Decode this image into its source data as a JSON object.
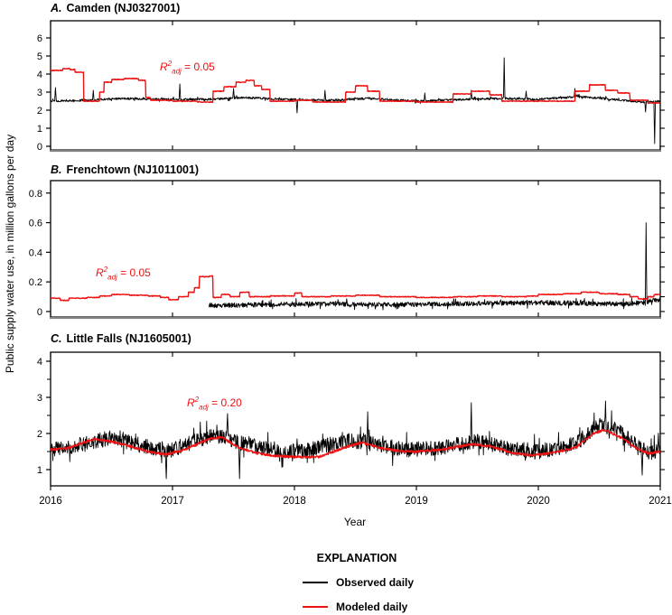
{
  "figure": {
    "y_axis_label": "Public supply water use, in million gallons per day",
    "x_axis_label": "Year",
    "x_ticks": [
      "2016",
      "2017",
      "2018",
      "2019",
      "2020",
      "2021"
    ],
    "colors": {
      "observed": "#000000",
      "modeled": "#ee1111",
      "annotation": "#ee1111",
      "gray_baseline": "#828282"
    },
    "legend": {
      "title": "EXPLANATION",
      "items": [
        {
          "label": "Observed daily",
          "color": "#000000"
        },
        {
          "label": "Modeled daily",
          "color": "#ee1111"
        }
      ]
    }
  },
  "chart_data": [
    {
      "type": "line",
      "panel_letter": "A.",
      "panel_name": "Camden (NJ0327001)",
      "r2": {
        "base": "R",
        "sup": "2",
        "sub": "adj",
        "rest": " = 0.05"
      },
      "xlabel": "Year",
      "xlim": [
        2016,
        2021
      ],
      "ylim": [
        -0.2,
        6.95
      ],
      "yticks": [
        "0",
        "1",
        "2",
        "3",
        "4",
        "5",
        "6"
      ],
      "yticks_right": [
        0,
        1,
        2,
        3,
        4,
        5,
        6
      ],
      "grid": false,
      "series": [
        {
          "name": "Observed daily",
          "style": "noisy",
          "interp": "linear",
          "noise": 0.06,
          "start": 2016,
          "base": [
            [
              2016.0,
              2.5
            ],
            [
              2016.3,
              2.55
            ],
            [
              2016.6,
              2.65
            ],
            [
              2016.9,
              2.6
            ],
            [
              2017.3,
              2.6
            ],
            [
              2017.6,
              2.7
            ],
            [
              2017.9,
              2.6
            ],
            [
              2018.3,
              2.55
            ],
            [
              2018.6,
              2.65
            ],
            [
              2019.0,
              2.5
            ],
            [
              2019.4,
              2.6
            ],
            [
              2019.7,
              2.65
            ],
            [
              2020.0,
              2.6
            ],
            [
              2020.35,
              2.75
            ],
            [
              2020.6,
              2.6
            ],
            [
              2020.85,
              2.45
            ],
            [
              2021.0,
              2.5
            ]
          ],
          "spikes": [
            [
              2016.04,
              3.25
            ],
            [
              2016.35,
              3.1
            ],
            [
              2017.06,
              3.45
            ],
            [
              2017.5,
              3.2
            ],
            [
              2018.02,
              1.85
            ],
            [
              2018.25,
              3.1
            ],
            [
              2019.07,
              2.95
            ],
            [
              2019.45,
              3.1
            ],
            [
              2019.72,
              4.9
            ],
            [
              2019.9,
              3.05
            ],
            [
              2020.3,
              3.2
            ],
            [
              2020.88,
              1.9
            ],
            [
              2020.955,
              0.15
            ]
          ]
        },
        {
          "name": "Modeled daily",
          "style": "smooth",
          "interp": "step",
          "noise": 0.02,
          "start": 2016,
          "base": [
            [
              2016.0,
              4.2
            ],
            [
              2016.1,
              4.3
            ],
            [
              2016.16,
              4.25
            ],
            [
              2016.2,
              4.1
            ],
            [
              2016.27,
              2.5
            ],
            [
              2016.4,
              3.0
            ],
            [
              2016.44,
              3.55
            ],
            [
              2016.5,
              3.7
            ],
            [
              2016.6,
              3.75
            ],
            [
              2016.72,
              3.65
            ],
            [
              2016.78,
              2.7
            ],
            [
              2016.82,
              2.55
            ],
            [
              2017.0,
              2.5
            ],
            [
              2017.2,
              2.45
            ],
            [
              2017.33,
              3.05
            ],
            [
              2017.42,
              3.3
            ],
            [
              2017.52,
              3.55
            ],
            [
              2017.6,
              3.65
            ],
            [
              2017.67,
              3.35
            ],
            [
              2017.73,
              3.15
            ],
            [
              2017.8,
              2.5
            ],
            [
              2018.0,
              2.55
            ],
            [
              2018.15,
              2.45
            ],
            [
              2018.42,
              3.0
            ],
            [
              2018.5,
              3.35
            ],
            [
              2018.6,
              3.05
            ],
            [
              2018.7,
              2.5
            ],
            [
              2019.0,
              2.45
            ],
            [
              2019.3,
              2.9
            ],
            [
              2019.45,
              3.05
            ],
            [
              2019.6,
              2.85
            ],
            [
              2019.7,
              2.5
            ],
            [
              2020.0,
              2.5
            ],
            [
              2020.3,
              3.05
            ],
            [
              2020.42,
              3.4
            ],
            [
              2020.55,
              3.1
            ],
            [
              2020.65,
              2.95
            ],
            [
              2020.75,
              2.55
            ],
            [
              2020.9,
              2.4
            ],
            [
              2021.0,
              2.6
            ]
          ],
          "spikes": []
        }
      ]
    },
    {
      "type": "line",
      "panel_letter": "B.",
      "panel_name": "Frenchtown (NJ1011001)",
      "r2": {
        "base": "R",
        "sup": "2",
        "sub": "adj",
        "rest": " = 0.05"
      },
      "xlabel": "Year",
      "xlim": [
        2016,
        2021
      ],
      "ylim": [
        -0.037,
        0.884
      ],
      "yticks": [
        "0",
        "0.2",
        "0.4",
        "0.6",
        "0.8"
      ],
      "yticks_right": [
        0,
        0.1,
        0.2,
        0.3,
        0.4,
        0.5,
        0.6,
        0.7,
        0.8
      ],
      "grid": false,
      "series": [
        {
          "name": "Observed daily",
          "style": "noisy",
          "interp": "linear",
          "noise": 0.016,
          "start": 2017.3,
          "base": [
            [
              2017.3,
              0.04
            ],
            [
              2017.7,
              0.045
            ],
            [
              2018.0,
              0.05
            ],
            [
              2018.4,
              0.05
            ],
            [
              2018.8,
              0.045
            ],
            [
              2019.2,
              0.05
            ],
            [
              2019.6,
              0.055
            ],
            [
              2020.0,
              0.06
            ],
            [
              2020.4,
              0.055
            ],
            [
              2020.7,
              0.05
            ],
            [
              2020.85,
              0.06
            ],
            [
              2021.0,
              0.08
            ]
          ],
          "spikes": [
            [
              2020.885,
              0.6
            ],
            [
              2020.95,
              0.09
            ]
          ]
        },
        {
          "name": "Modeled daily",
          "style": "smooth",
          "interp": "step",
          "noise": 0.0025,
          "start": 2016,
          "base": [
            [
              2016.0,
              0.09
            ],
            [
              2016.08,
              0.075
            ],
            [
              2016.15,
              0.09
            ],
            [
              2016.3,
              0.095
            ],
            [
              2016.4,
              0.105
            ],
            [
              2016.5,
              0.115
            ],
            [
              2016.65,
              0.11
            ],
            [
              2016.8,
              0.105
            ],
            [
              2016.9,
              0.095
            ],
            [
              2016.97,
              0.08
            ],
            [
              2017.05,
              0.1
            ],
            [
              2017.13,
              0.13
            ],
            [
              2017.18,
              0.16
            ],
            [
              2017.22,
              0.235
            ],
            [
              2017.3,
              0.24
            ],
            [
              2017.33,
              0.095
            ],
            [
              2017.4,
              0.115
            ],
            [
              2017.47,
              0.1
            ],
            [
              2017.55,
              0.13
            ],
            [
              2017.63,
              0.1
            ],
            [
              2017.8,
              0.105
            ],
            [
              2018.0,
              0.125
            ],
            [
              2018.06,
              0.1
            ],
            [
              2018.3,
              0.105
            ],
            [
              2018.5,
              0.11
            ],
            [
              2018.7,
              0.1
            ],
            [
              2019.0,
              0.095
            ],
            [
              2019.3,
              0.1
            ],
            [
              2019.5,
              0.105
            ],
            [
              2019.7,
              0.1
            ],
            [
              2019.9,
              0.105
            ],
            [
              2020.0,
              0.115
            ],
            [
              2020.2,
              0.12
            ],
            [
              2020.35,
              0.13
            ],
            [
              2020.5,
              0.12
            ],
            [
              2020.65,
              0.115
            ],
            [
              2020.75,
              0.1
            ],
            [
              2020.82,
              0.085
            ],
            [
              2020.9,
              0.1
            ],
            [
              2020.95,
              0.115
            ],
            [
              2021.0,
              0.12
            ]
          ],
          "spikes": []
        }
      ]
    },
    {
      "type": "line",
      "panel_letter": "C.",
      "panel_name": "Little Falls (NJ1605001)",
      "r2": {
        "base": "R",
        "sup": "2",
        "sub": "adj",
        "rest": " = 0.20"
      },
      "xlabel": "Year",
      "xlim": [
        2016,
        2021
      ],
      "ylim": [
        0.55,
        4.25
      ],
      "yticks": [
        "1",
        "2",
        "3",
        "4"
      ],
      "yticks_right": [
        1,
        1.5,
        2,
        2.5,
        3,
        3.5,
        4
      ],
      "yticks_minor_left": [
        1.5,
        2.5,
        3.5
      ],
      "grid": false,
      "series": [
        {
          "name": "Observed daily",
          "style": "noisy",
          "interp": "linear",
          "noise": 0.21,
          "start": 2016,
          "base": [
            [
              2016.0,
              1.55
            ],
            [
              2016.35,
              1.75
            ],
            [
              2016.5,
              1.9
            ],
            [
              2016.7,
              1.7
            ],
            [
              2016.95,
              1.5
            ],
            [
              2017.2,
              1.8
            ],
            [
              2017.35,
              1.95
            ],
            [
              2017.6,
              1.7
            ],
            [
              2017.9,
              1.5
            ],
            [
              2018.1,
              1.55
            ],
            [
              2018.45,
              1.8
            ],
            [
              2018.6,
              1.75
            ],
            [
              2018.9,
              1.55
            ],
            [
              2019.2,
              1.6
            ],
            [
              2019.5,
              1.8
            ],
            [
              2019.75,
              1.6
            ],
            [
              2020.0,
              1.5
            ],
            [
              2020.3,
              1.7
            ],
            [
              2020.5,
              2.25
            ],
            [
              2020.65,
              2.1
            ],
            [
              2020.8,
              1.7
            ],
            [
              2020.9,
              1.45
            ],
            [
              2021.0,
              1.55
            ]
          ],
          "spikes": [
            [
              2016.95,
              0.75
            ],
            [
              2017.45,
              2.55
            ],
            [
              2017.55,
              0.75
            ],
            [
              2018.6,
              2.6
            ],
            [
              2019.45,
              2.85
            ],
            [
              2020.55,
              2.9
            ],
            [
              2020.85,
              0.85
            ]
          ]
        },
        {
          "name": "Modeled daily",
          "style": "smooth",
          "interp": "linear",
          "noise": 0.032,
          "start": 2016,
          "base": [
            [
              2016.0,
              1.55
            ],
            [
              2016.15,
              1.6
            ],
            [
              2016.35,
              1.85
            ],
            [
              2016.45,
              1.8
            ],
            [
              2016.6,
              1.7
            ],
            [
              2016.8,
              1.5
            ],
            [
              2016.95,
              1.42
            ],
            [
              2017.1,
              1.55
            ],
            [
              2017.3,
              1.85
            ],
            [
              2017.4,
              1.9
            ],
            [
              2017.55,
              1.6
            ],
            [
              2017.7,
              1.45
            ],
            [
              2017.85,
              1.38
            ],
            [
              2018.0,
              1.35
            ],
            [
              2018.2,
              1.35
            ],
            [
              2018.4,
              1.6
            ],
            [
              2018.55,
              1.75
            ],
            [
              2018.7,
              1.6
            ],
            [
              2018.9,
              1.5
            ],
            [
              2019.0,
              1.5
            ],
            [
              2019.2,
              1.55
            ],
            [
              2019.45,
              1.7
            ],
            [
              2019.6,
              1.65
            ],
            [
              2019.8,
              1.45
            ],
            [
              2019.95,
              1.4
            ],
            [
              2020.1,
              1.45
            ],
            [
              2020.3,
              1.6
            ],
            [
              2020.45,
              2.0
            ],
            [
              2020.55,
              2.1
            ],
            [
              2020.7,
              1.85
            ],
            [
              2020.8,
              1.6
            ],
            [
              2020.9,
              1.45
            ],
            [
              2021.0,
              1.5
            ]
          ],
          "spikes": []
        }
      ]
    }
  ]
}
